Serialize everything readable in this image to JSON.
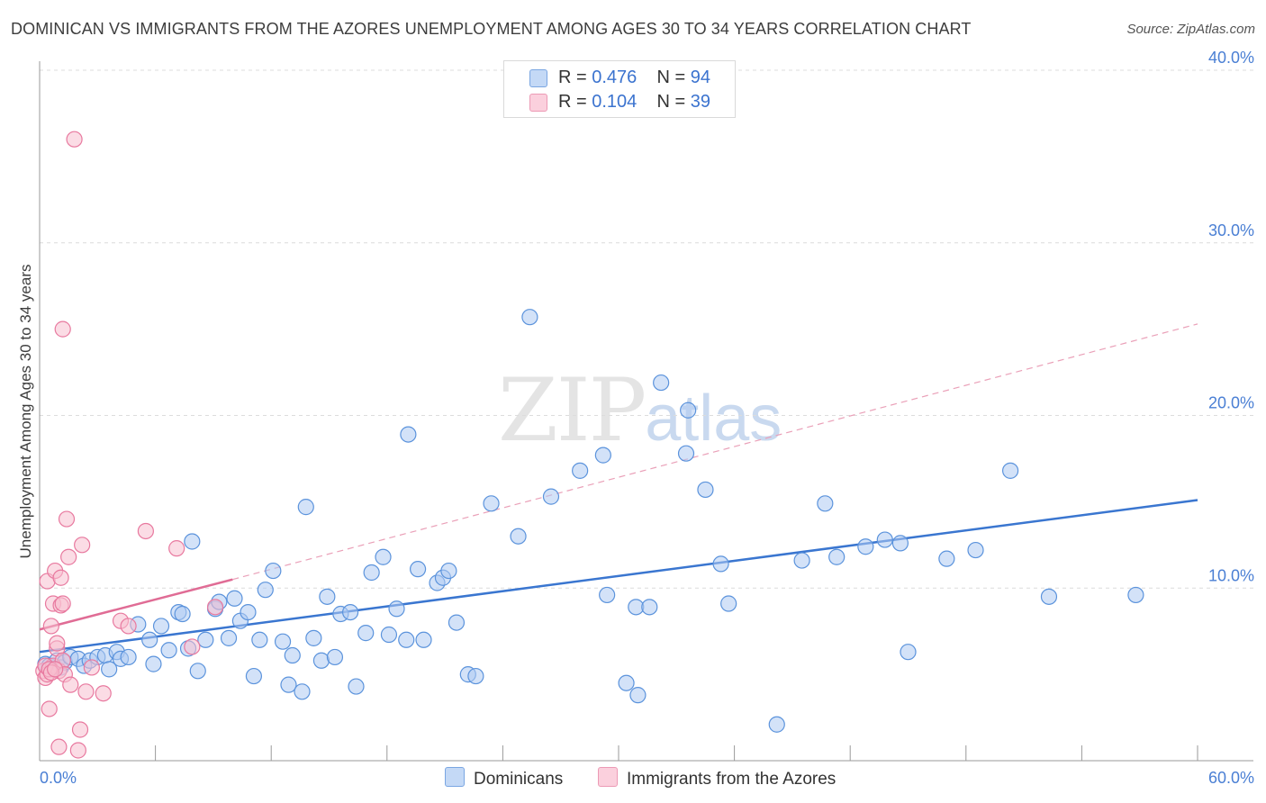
{
  "header": {
    "title": "DOMINICAN VS IMMIGRANTS FROM THE AZORES UNEMPLOYMENT AMONG AGES 30 TO 34 YEARS CORRELATION CHART",
    "source": "Source: ZipAtlas.com"
  },
  "watermark": {
    "zip": "ZIP",
    "atlas": "atlas"
  },
  "legend": {
    "rows": [
      {
        "r_label": "R =",
        "r_value": "0.476",
        "n_label": "N =",
        "n_value": "94",
        "color": "#aecbf2"
      },
      {
        "r_label": "R =",
        "r_value": "0.104",
        "n_label": "N =",
        "n_value": "39",
        "color": "#f8bfd0"
      }
    ]
  },
  "bottom_legend": {
    "series1": "Dominicans",
    "series2": "Immigrants from the Azores"
  },
  "chart_data": {
    "type": "scatter",
    "title": "DOMINICAN VS IMMIGRANTS FROM THE AZORES UNEMPLOYMENT AMONG AGES 30 TO 34 YEARS CORRELATION CHART",
    "xlabel": "",
    "ylabel": "Unemployment Among Ages 30 to 34 years",
    "xlim": [
      0,
      60
    ],
    "ylim": [
      0,
      40
    ],
    "x_tick_labels": [
      "0.0%",
      "60.0%"
    ],
    "y_ticks": [
      10,
      20,
      30,
      40
    ],
    "y_tick_labels": [
      "10.0%",
      "20.0%",
      "30.0%",
      "40.0%"
    ],
    "grid": true,
    "series": [
      {
        "name": "Dominicans",
        "color": "#5b93dc",
        "fill": "#aecbf2",
        "trend": {
          "x": [
            0,
            60
          ],
          "y": [
            6.3,
            15.1
          ],
          "style": "solid"
        },
        "points": [
          [
            0.3,
            5.6
          ],
          [
            0.5,
            5.5
          ],
          [
            0.7,
            5.3
          ],
          [
            0.9,
            5.8
          ],
          [
            1.1,
            5.4
          ],
          [
            1.3,
            5.7
          ],
          [
            1.6,
            6.0
          ],
          [
            2.0,
            5.9
          ],
          [
            2.3,
            5.5
          ],
          [
            2.6,
            5.8
          ],
          [
            3.0,
            6.0
          ],
          [
            3.4,
            6.1
          ],
          [
            3.6,
            5.3
          ],
          [
            4.0,
            6.3
          ],
          [
            4.2,
            5.9
          ],
          [
            4.6,
            6.0
          ],
          [
            5.1,
            7.9
          ],
          [
            5.7,
            7.0
          ],
          [
            5.9,
            5.6
          ],
          [
            6.3,
            7.8
          ],
          [
            6.7,
            6.4
          ],
          [
            7.2,
            8.6
          ],
          [
            7.4,
            8.5
          ],
          [
            7.7,
            6.5
          ],
          [
            7.9,
            12.7
          ],
          [
            8.2,
            5.2
          ],
          [
            8.6,
            7.0
          ],
          [
            9.1,
            8.8
          ],
          [
            9.3,
            9.2
          ],
          [
            9.8,
            7.1
          ],
          [
            10.1,
            9.4
          ],
          [
            10.4,
            8.1
          ],
          [
            10.8,
            8.6
          ],
          [
            11.1,
            4.9
          ],
          [
            11.4,
            7.0
          ],
          [
            11.7,
            9.9
          ],
          [
            12.1,
            11.0
          ],
          [
            12.6,
            6.9
          ],
          [
            12.9,
            4.4
          ],
          [
            13.1,
            6.1
          ],
          [
            13.6,
            4.0
          ],
          [
            13.8,
            14.7
          ],
          [
            14.2,
            7.1
          ],
          [
            14.6,
            5.8
          ],
          [
            14.9,
            9.5
          ],
          [
            15.3,
            6.0
          ],
          [
            15.6,
            8.5
          ],
          [
            16.1,
            8.6
          ],
          [
            16.4,
            4.3
          ],
          [
            16.9,
            7.4
          ],
          [
            17.2,
            10.9
          ],
          [
            17.8,
            11.8
          ],
          [
            18.1,
            7.3
          ],
          [
            18.5,
            8.8
          ],
          [
            19.0,
            7.0
          ],
          [
            19.1,
            18.9
          ],
          [
            19.6,
            11.1
          ],
          [
            19.9,
            7.0
          ],
          [
            20.6,
            10.3
          ],
          [
            20.9,
            10.6
          ],
          [
            21.2,
            11.0
          ],
          [
            21.6,
            8.0
          ],
          [
            22.2,
            5.0
          ],
          [
            22.6,
            4.9
          ],
          [
            23.4,
            14.9
          ],
          [
            24.8,
            13.0
          ],
          [
            25.4,
            25.7
          ],
          [
            26.5,
            15.3
          ],
          [
            28.0,
            16.8
          ],
          [
            29.2,
            17.7
          ],
          [
            29.4,
            9.6
          ],
          [
            30.4,
            4.5
          ],
          [
            31.0,
            3.8
          ],
          [
            30.9,
            8.9
          ],
          [
            31.6,
            8.9
          ],
          [
            32.2,
            21.9
          ],
          [
            33.5,
            17.8
          ],
          [
            33.6,
            20.3
          ],
          [
            34.5,
            15.7
          ],
          [
            35.3,
            11.4
          ],
          [
            35.7,
            9.1
          ],
          [
            38.2,
            2.1
          ],
          [
            39.5,
            11.6
          ],
          [
            40.7,
            14.9
          ],
          [
            41.3,
            11.8
          ],
          [
            42.8,
            12.4
          ],
          [
            43.8,
            12.8
          ],
          [
            44.6,
            12.6
          ],
          [
            45.0,
            6.3
          ],
          [
            47.0,
            11.7
          ],
          [
            48.5,
            12.2
          ],
          [
            50.3,
            16.8
          ],
          [
            52.3,
            9.5
          ],
          [
            56.8,
            9.6
          ]
        ]
      },
      {
        "name": "Immigrants from the Azores",
        "color": "#e8799f",
        "fill": "#f8bfd0",
        "trend_solid": {
          "x": [
            0,
            10
          ],
          "y": [
            7.6,
            10.5
          ]
        },
        "trend_dashed": {
          "x": [
            10,
            60
          ],
          "y": [
            10.5,
            25.3
          ]
        },
        "points": [
          [
            0.2,
            5.2
          ],
          [
            0.3,
            4.8
          ],
          [
            0.4,
            5.0
          ],
          [
            0.4,
            10.4
          ],
          [
            0.5,
            3.0
          ],
          [
            0.6,
            7.8
          ],
          [
            0.7,
            5.5
          ],
          [
            0.7,
            9.1
          ],
          [
            0.8,
            11.0
          ],
          [
            0.9,
            6.5
          ],
          [
            0.9,
            6.8
          ],
          [
            1.0,
            5.2
          ],
          [
            1.0,
            0.8
          ],
          [
            1.1,
            9.0
          ],
          [
            1.1,
            10.6
          ],
          [
            1.2,
            9.1
          ],
          [
            1.2,
            25.0
          ],
          [
            1.2,
            5.8
          ],
          [
            1.3,
            5.0
          ],
          [
            1.4,
            14.0
          ],
          [
            1.5,
            11.8
          ],
          [
            1.6,
            4.4
          ],
          [
            1.8,
            36.0
          ],
          [
            2.0,
            0.6
          ],
          [
            2.2,
            12.5
          ],
          [
            2.1,
            1.8
          ],
          [
            2.4,
            4.0
          ],
          [
            2.7,
            5.4
          ],
          [
            3.3,
            3.9
          ],
          [
            4.2,
            8.1
          ],
          [
            4.6,
            7.8
          ],
          [
            5.5,
            13.3
          ],
          [
            7.1,
            12.3
          ],
          [
            7.9,
            6.6
          ],
          [
            9.1,
            8.9
          ],
          [
            0.3,
            5.5
          ],
          [
            0.5,
            5.3
          ],
          [
            0.6,
            5.1
          ],
          [
            0.8,
            5.3
          ]
        ]
      }
    ]
  }
}
